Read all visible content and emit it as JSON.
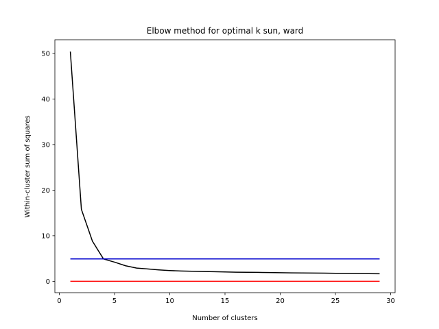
{
  "chart_data": {
    "type": "line",
    "title": "Elbow method for optimal k sun, ward",
    "xlabel": "Number of clusters",
    "ylabel": "Within-cluster sum of squares",
    "xlim": [
      -0.4,
      30.4
    ],
    "ylim": [
      -2.5,
      53.0
    ],
    "xticks": [
      0,
      5,
      10,
      15,
      20,
      25,
      30
    ],
    "yticks": [
      0,
      10,
      20,
      30,
      40,
      50
    ],
    "grid": false,
    "series": [
      {
        "color": "#000000",
        "x": [
          1,
          2,
          3,
          4,
          5,
          6,
          7,
          8,
          9,
          10,
          11,
          12,
          13,
          14,
          15,
          16,
          17,
          18,
          19,
          20,
          21,
          22,
          23,
          24,
          25,
          26,
          27,
          28,
          29
        ],
        "y": [
          50.4,
          15.8,
          8.8,
          4.9,
          4.2,
          3.4,
          2.9,
          2.7,
          2.5,
          2.35,
          2.25,
          2.2,
          2.15,
          2.1,
          2.05,
          2.0,
          1.98,
          1.95,
          1.92,
          1.88,
          1.85,
          1.82,
          1.8,
          1.78,
          1.75,
          1.72,
          1.7,
          1.67,
          1.65
        ]
      },
      {
        "color": "#0000cc",
        "x": [
          1,
          29
        ],
        "y": [
          4.9,
          4.9
        ]
      },
      {
        "color": "#ff0000",
        "x": [
          1,
          29
        ],
        "y": [
          0.0,
          0.0
        ]
      }
    ]
  }
}
